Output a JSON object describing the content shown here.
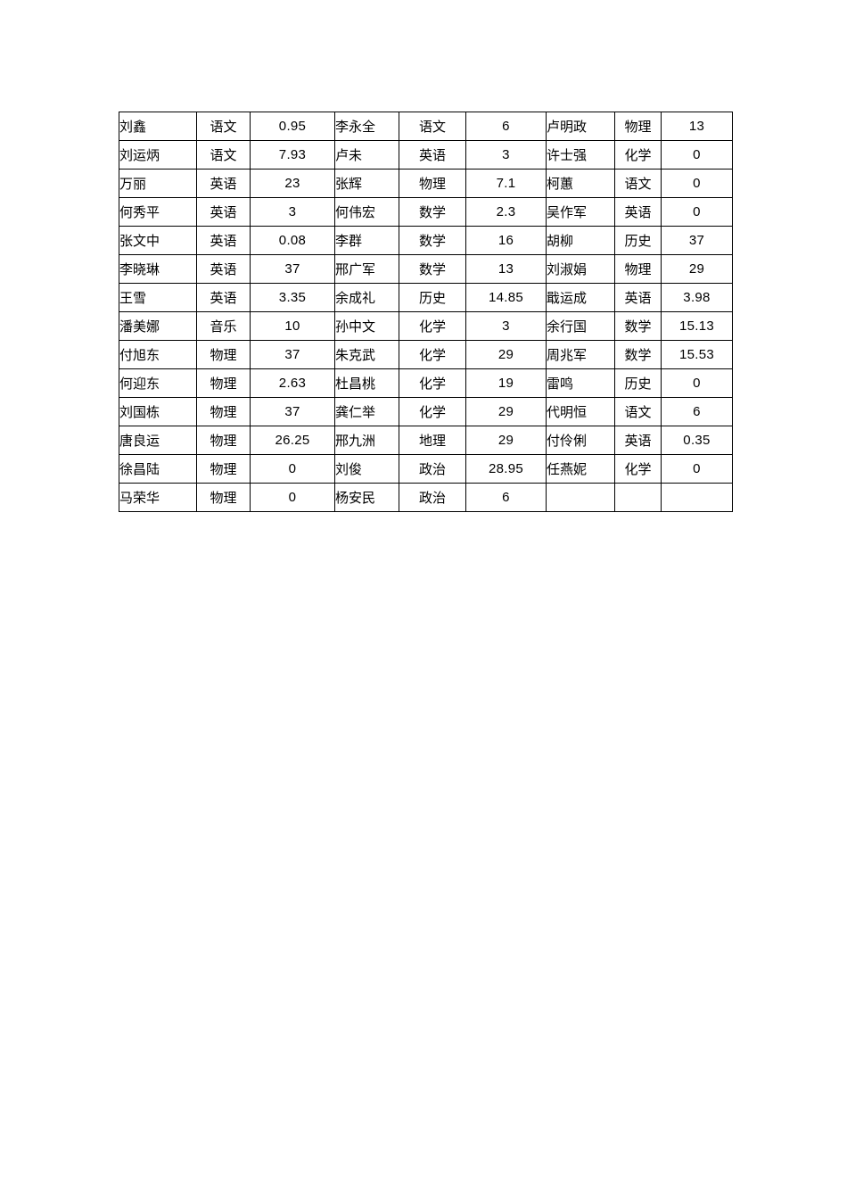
{
  "page": {
    "background_color": "#ffffff"
  },
  "table": {
    "border_color": "#000000",
    "text_color": "#000000",
    "column_roles": [
      "student-name",
      "subject",
      "score",
      "student-name",
      "subject",
      "score",
      "student-name",
      "subject",
      "score"
    ],
    "rows": [
      [
        "刘鑫",
        "语文",
        "0.95",
        "李永全",
        "语文",
        "6",
        "卢明政",
        "物理",
        "13"
      ],
      [
        "刘运炳",
        "语文",
        "7.93",
        "卢未",
        "英语",
        "3",
        "许士强",
        "化学",
        "0"
      ],
      [
        "万丽",
        "英语",
        "23",
        "张辉",
        "物理",
        "7.1",
        "柯蕙",
        "语文",
        "0"
      ],
      [
        "何秀平",
        "英语",
        "3",
        "何伟宏",
        "数学",
        "2.3",
        "吴作军",
        "英语",
        "0"
      ],
      [
        "张文中",
        "英语",
        "0.08",
        "李群",
        "数学",
        "16",
        "胡柳",
        "历史",
        "37"
      ],
      [
        "李晓琳",
        "英语",
        "37",
        "邢广军",
        "数学",
        "13",
        "刘淑娟",
        "物理",
        "29"
      ],
      [
        "王雪",
        "英语",
        "3.35",
        "余成礼",
        "历史",
        "14.85",
        "戢运成",
        "英语",
        "3.98"
      ],
      [
        "潘美娜",
        "音乐",
        "10",
        "孙中文",
        "化学",
        "3",
        "余行国",
        "数学",
        "15.13"
      ],
      [
        "付旭东",
        "物理",
        "37",
        "朱克武",
        "化学",
        "29",
        "周兆军",
        "数学",
        "15.53"
      ],
      [
        "何迎东",
        "物理",
        "2.63",
        "杜昌桃",
        "化学",
        "19",
        "雷鸣",
        "历史",
        "0"
      ],
      [
        "刘国栋",
        "物理",
        "37",
        "龚仁举",
        "化学",
        "29",
        "代明恒",
        "语文",
        "6"
      ],
      [
        "唐良运",
        "物理",
        "26.25",
        "邢九洲",
        "地理",
        "29",
        "付伶俐",
        "英语",
        "0.35"
      ],
      [
        "徐昌陆",
        "物理",
        "0",
        "刘俊",
        "政治",
        "28.95",
        "任燕妮",
        "化学",
        "0"
      ],
      [
        "马荣华",
        "物理",
        "0",
        "杨安民",
        "政治",
        "6",
        "",
        "",
        ""
      ]
    ]
  }
}
